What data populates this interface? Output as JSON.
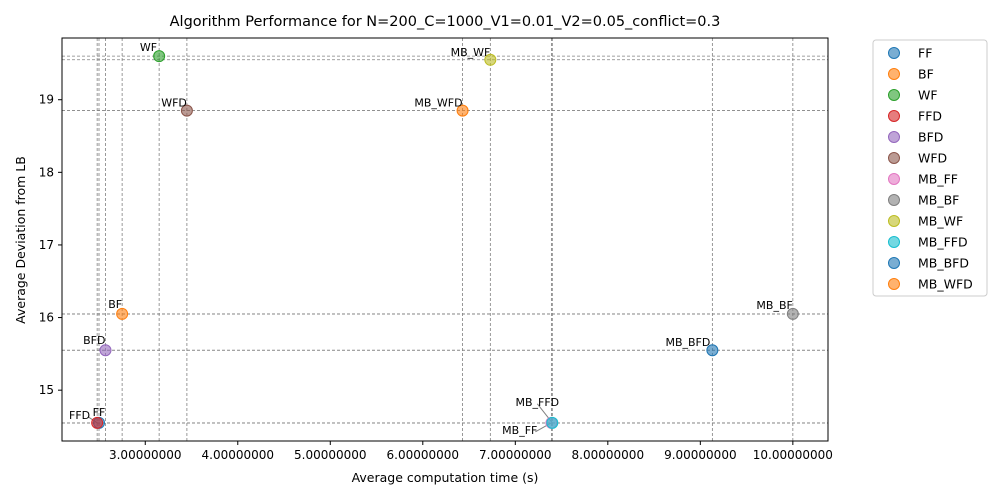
{
  "chart_data": {
    "type": "scatter",
    "title": "Algorithm Performance for N=200_C=1000_V1=0.01_V2=0.05_conflict=0.3",
    "xlabel": "Average computation time (s)",
    "ylabel": "Average Deviation from LB",
    "xlim": [
      2.1,
      10.38
    ],
    "ylim": [
      14.3,
      19.85
    ],
    "x_ticks": [
      {
        "value": 3.0,
        "label": "3.00000000"
      },
      {
        "value": 4.0,
        "label": "4.00000000"
      },
      {
        "value": 5.0,
        "label": "5.00000000"
      },
      {
        "value": 6.0,
        "label": "6.00000000"
      },
      {
        "value": 7.0,
        "label": "7.00000000"
      },
      {
        "value": 8.0,
        "label": "8.00000000"
      },
      {
        "value": 9.0,
        "label": "9.00000000"
      },
      {
        "value": 10.0,
        "label": "10.00000000"
      }
    ],
    "y_ticks": [
      {
        "value": 15,
        "label": "15"
      },
      {
        "value": 16,
        "label": "16"
      },
      {
        "value": 17,
        "label": "17"
      },
      {
        "value": 18,
        "label": "18"
      },
      {
        "value": 19,
        "label": "19"
      }
    ],
    "grid": "dashed reference lines through each point",
    "legend_position": "outside-right",
    "series": [
      {
        "name": "FF",
        "x": 2.5,
        "y": 14.55,
        "color": "#1f77b4",
        "label": "FF",
        "label_anchor": "middle"
      },
      {
        "name": "BF",
        "x": 2.75,
        "y": 16.05,
        "color": "#ff7f0e",
        "label": "BF",
        "label_anchor": "end"
      },
      {
        "name": "WF",
        "x": 3.15,
        "y": 19.6,
        "color": "#2ca02c",
        "label": "WF",
        "label_anchor": "end"
      },
      {
        "name": "FFD",
        "x": 2.48,
        "y": 14.55,
        "color": "#d62728",
        "label": "FFD",
        "label_anchor": "end"
      },
      {
        "name": "BFD",
        "x": 2.57,
        "y": 15.55,
        "color": "#9467bd",
        "label": "BFD",
        "label_anchor": "end"
      },
      {
        "name": "WFD",
        "x": 3.45,
        "y": 18.85,
        "color": "#8c564b",
        "label": "WFD",
        "label_anchor": "end"
      },
      {
        "name": "MB_FF",
        "x": 7.39,
        "y": 14.55,
        "color": "#e377c2",
        "label": "MB_FF",
        "label_anchor": "end"
      },
      {
        "name": "MB_BF",
        "x": 10.0,
        "y": 16.05,
        "color": "#7f7f7f",
        "label": "MB_BF",
        "label_anchor": "end"
      },
      {
        "name": "MB_WF",
        "x": 6.73,
        "y": 19.55,
        "color": "#bcbd22",
        "label": "MB_WF",
        "label_anchor": "end"
      },
      {
        "name": "MB_FFD",
        "x": 7.4,
        "y": 14.55,
        "color": "#17becf",
        "label": "MB_FFD",
        "label_anchor": "middle"
      },
      {
        "name": "MB_BFD",
        "x": 9.13,
        "y": 15.55,
        "color": "#1f77b4",
        "label": "MB_BFD",
        "label_anchor": "end"
      },
      {
        "name": "MB_WFD",
        "x": 6.43,
        "y": 18.85,
        "color": "#ff7f0e",
        "label": "MB_WFD",
        "label_anchor": "end"
      }
    ]
  }
}
